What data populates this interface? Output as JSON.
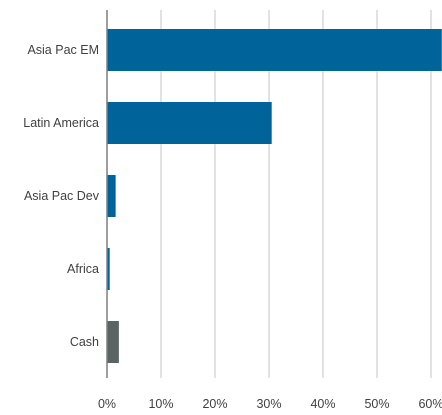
{
  "chart_data": {
    "type": "bar",
    "orientation": "horizontal",
    "categories": [
      "Asia Pac EM",
      "Latin America",
      "Asia Pac Dev",
      "Africa",
      "Cash"
    ],
    "values": [
      62.0,
      30.5,
      1.6,
      0.5,
      2.2
    ],
    "bar_colors": [
      "#00649b",
      "#00649b",
      "#00649b",
      "#00649b",
      "#596463"
    ],
    "xlim": [
      0,
      60
    ],
    "x_ticks": [
      "0%",
      "10%",
      "20%",
      "30%",
      "40%",
      "50%",
      "60%"
    ],
    "title": "",
    "xlabel": "",
    "ylabel": "",
    "grid": "vertical",
    "legend": "none"
  }
}
